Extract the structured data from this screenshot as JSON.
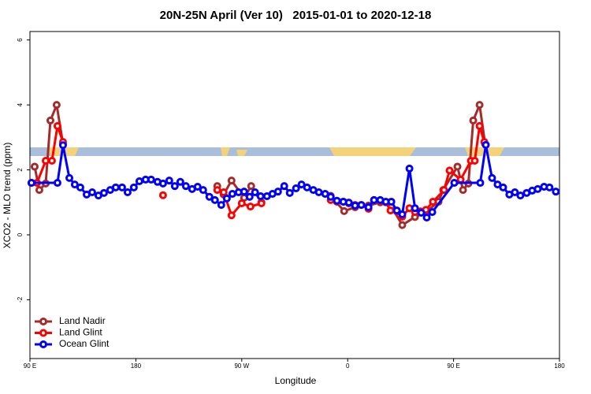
{
  "chart_data": {
    "type": "line",
    "title": "20N-25N April (Ver 10)   2015-01-01 to 2020-12-18",
    "xlabel": "Longitude",
    "ylabel": "XCO2 - MLO trend (ppm)",
    "xlim": [
      90,
      540
    ],
    "ylim": [
      -3.81,
      6.26
    ],
    "xticks": [
      {
        "value": 90,
        "label": "90 E"
      },
      180,
      {
        "value": 270,
        "label": "90 W"
      },
      {
        "value": 360,
        "label": "0"
      },
      {
        "value": 450,
        "label": "90 E"
      },
      180
    ],
    "yticks": [
      -2,
      0,
      2,
      4,
      6
    ],
    "legend": "bottom-left",
    "series": [
      {
        "name": "Land Nadir",
        "color": "#a52a2a",
        "x": [
          94,
          98,
          103.4,
          107.4,
          112.7,
          118.1,
          null,
          249.2,
          254.6,
          261.3,
          272,
          278,
          286.7,
          null,
          345.6,
          357,
          366.3,
          377.7,
          387.7,
          397.1,
          406.4,
          417.2,
          426.5,
          437.2,
          441.2,
          453.3,
          458,
          462.6,
          466.7,
          472.1,
          476.8
        ],
        "values": [
          2.1,
          1.38,
          1.58,
          3.52,
          4.0,
          2.8,
          null,
          1.5,
          1.24,
          1.67,
          1.14,
          1.5,
          1.0,
          null,
          1.2,
          0.73,
          0.85,
          0.9,
          1.0,
          0.87,
          0.3,
          0.55,
          0.7,
          1.02,
          1.38,
          2.1,
          1.38,
          1.58,
          3.52,
          4.0,
          2.8
        ]
      },
      {
        "name": "Land Glint",
        "color": "#ff0000",
        "x": [
          91.3,
          96,
          103.4,
          108.7,
          113.4,
          118.1,
          null,
          203.1,
          null,
          249.2,
          254.6,
          261.3,
          270,
          277.4,
          286.7,
          null,
          345.6,
          350.9,
          356.3,
          361,
          366.3,
          371.6,
          377.7,
          382.4,
          387.7,
          392.4,
          396.4,
          401.8,
          406.4,
          412.5,
          417.2,
          421.8,
          426.5,
          432.5,
          441.9,
          446.6,
          456,
          464.7,
          468,
          472.1,
          476.1
        ],
        "values": [
          1.6,
          1.6,
          2.28,
          2.28,
          3.35,
          2.86,
          null,
          1.22,
          null,
          1.38,
          1.31,
          0.6,
          0.97,
          0.87,
          0.97,
          null,
          1.07,
          1.02,
          1.02,
          0.97,
          0.92,
          0.92,
          0.8,
          1.07,
          1.05,
          1.0,
          0.75,
          0.72,
          0.56,
          0.82,
          0.7,
          0.72,
          0.77,
          1.02,
          1.38,
          1.98,
          1.7,
          2.28,
          2.28,
          3.35,
          2.86
        ]
      },
      {
        "name": "Ocean Glint",
        "color": "#0000ff",
        "x": [
          91.3,
          113.4,
          118.1,
          123.5,
          128.1,
          132.8,
          138.2,
          142.9,
          148.2,
          152.9,
          158.2,
          162.9,
          168.3,
          173,
          178.3,
          183,
          188.3,
          193,
          198.4,
          203.1,
          208.4,
          213.1,
          217.8,
          222.5,
          227.8,
          232.5,
          237.2,
          242.5,
          247.2,
          252.6,
          257.3,
          262,
          267.3,
          272,
          276.7,
          281.3,
          286,
          291.4,
          296.1,
          300.8,
          306.1,
          310.8,
          316.1,
          320.8,
          325.5,
          330.8,
          335.5,
          340.9,
          345.6,
          350.9,
          356.3,
          361,
          366.3,
          371.6,
          377.7,
          382.4,
          387.7,
          392.4,
          397.1,
          401.8,
          406.4,
          412.5,
          417.2,
          422.5,
          427.2,
          431.9,
          450.6,
          472.7,
          477.4,
          482.7,
          487.4,
          492.1,
          497.4,
          502.1,
          506.8,
          512.1,
          516.8,
          521.5,
          526.9,
          531.5,
          536.9
        ],
        "values": [
          1.6,
          1.6,
          2.76,
          1.75,
          1.55,
          1.46,
          1.24,
          1.31,
          1.21,
          1.29,
          1.38,
          1.46,
          1.46,
          1.31,
          1.46,
          1.65,
          1.7,
          1.7,
          1.63,
          1.58,
          1.67,
          1.5,
          1.63,
          1.5,
          1.41,
          1.48,
          1.38,
          1.17,
          1.07,
          0.92,
          1.12,
          1.26,
          1.31,
          1.33,
          1.17,
          1.31,
          1.19,
          1.19,
          1.26,
          1.33,
          1.5,
          1.29,
          1.43,
          1.55,
          1.46,
          1.38,
          1.31,
          1.26,
          1.17,
          1.05,
          1.02,
          0.99,
          0.9,
          0.92,
          0.85,
          1.07,
          1.07,
          1.02,
          1.02,
          0.75,
          0.63,
          2.04,
          0.82,
          0.68,
          0.53,
          0.7,
          1.6,
          1.6,
          2.77,
          1.75,
          1.55,
          1.46,
          1.24,
          1.31,
          1.21,
          1.29,
          1.36,
          1.41,
          1.48,
          1.46,
          1.33
        ]
      }
    ]
  }
}
